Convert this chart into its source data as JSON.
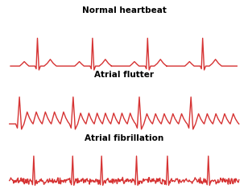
{
  "title1": "Normal heartbeat",
  "title2": "Atrial flutter",
  "title3": "Atrial fibrillation",
  "line_color": "#d63333",
  "bg_color": "#ffffff",
  "title_fontsize": 7.5,
  "title_fontweight": "bold"
}
